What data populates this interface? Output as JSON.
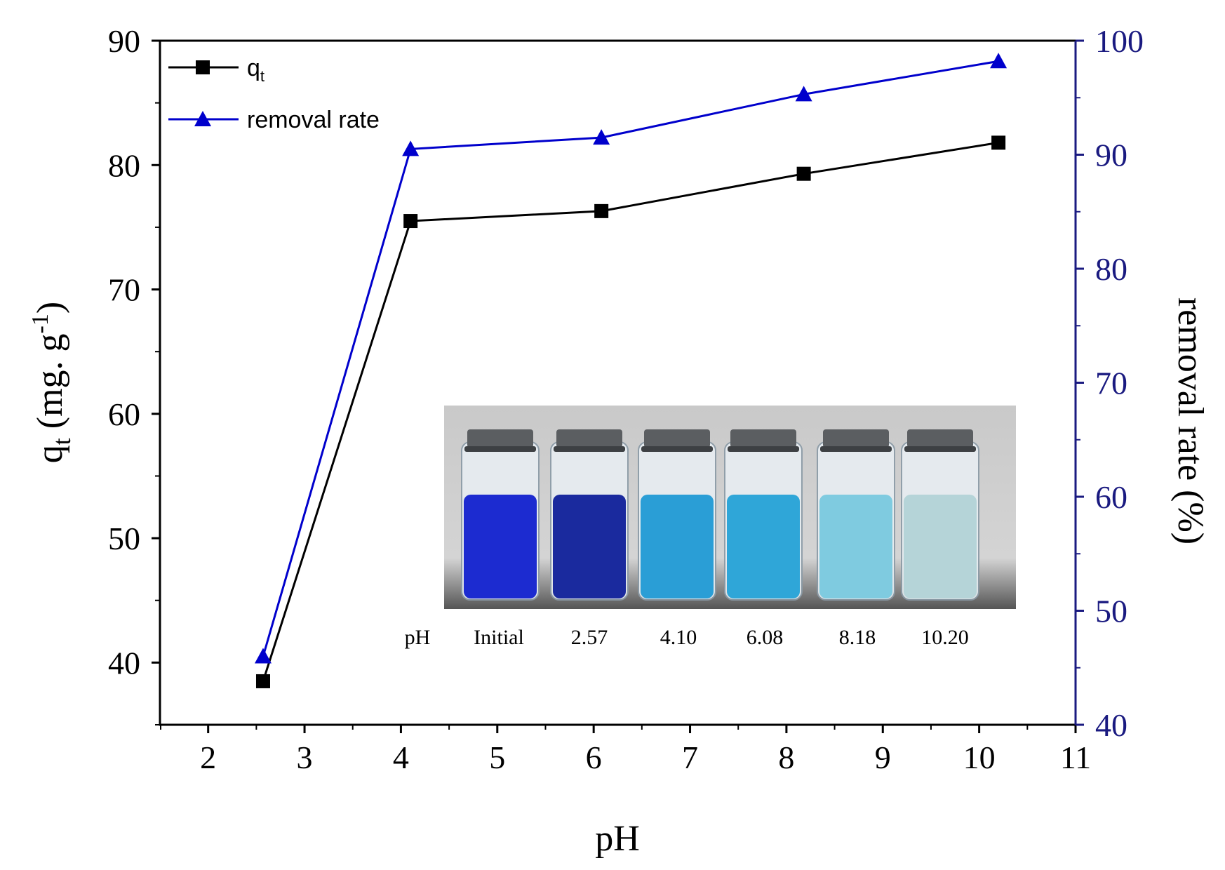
{
  "chart_data": {
    "type": "line",
    "x": [
      2.57,
      4.1,
      6.08,
      8.18,
      10.2
    ],
    "series": [
      {
        "name": "q",
        "name_subscript": "t",
        "axis": "left",
        "color": "#000000",
        "marker": "square",
        "values": [
          38.5,
          75.5,
          76.3,
          79.3,
          81.8
        ]
      },
      {
        "name": "removal rate",
        "axis": "right",
        "color": "#0000cc",
        "marker": "triangle",
        "values": [
          46.0,
          90.5,
          91.5,
          95.3,
          98.2
        ]
      }
    ],
    "xlabel": "pH",
    "ylabel_left": {
      "main": "q",
      "sub": "t",
      "rest": " (mg. g",
      "sup": "-1",
      "end": ")"
    },
    "ylabel_right": "removal rate (%)",
    "xlim": [
      1.5,
      11
    ],
    "xticks": [
      "2",
      "3",
      "4",
      "5",
      "6",
      "7",
      "8",
      "9",
      "10",
      "11"
    ],
    "ylim_left": [
      35,
      90
    ],
    "yticks_left": [
      "40",
      "50",
      "60",
      "70",
      "80",
      "90"
    ],
    "ylim_right": [
      40,
      100
    ],
    "yticks_right": [
      "40",
      "50",
      "60",
      "70",
      "80",
      "90",
      "100"
    ],
    "right_axis_color": "#1a1a80",
    "legend_position": "top-left",
    "grid": false
  },
  "inset": {
    "labels": [
      "pH",
      "Initial",
      "2.57",
      "4.10",
      "6.08",
      "8.18",
      "10.20"
    ],
    "vial_colors": [
      "#1c2bd0",
      "#1a2a9e",
      "#2a9ed6",
      "#2fa6d8",
      "#7fcbe0",
      "#b5d4d8"
    ]
  }
}
